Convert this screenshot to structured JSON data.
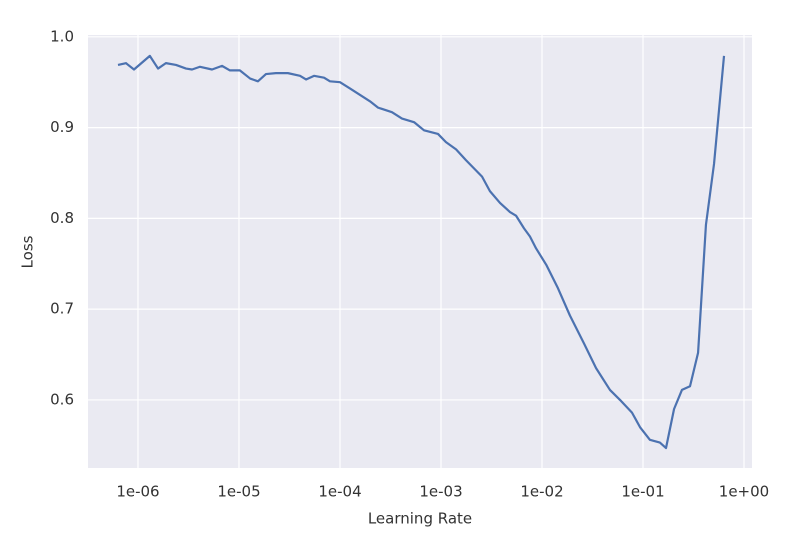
{
  "chart_data": {
    "type": "line",
    "x_label": "Learning Rate",
    "y_label": "Loss",
    "x_scale": "log",
    "grid": true,
    "xlim": [
      3.2e-07,
      1.2
    ],
    "ylim": [
      0.525,
      1.002
    ],
    "xticks": [
      {
        "value": 1e-06,
        "label": "1e-06"
      },
      {
        "value": 1e-05,
        "label": "1e-05"
      },
      {
        "value": 0.0001,
        "label": "1e-04"
      },
      {
        "value": 0.001,
        "label": "1e-03"
      },
      {
        "value": 0.01,
        "label": "1e-02"
      },
      {
        "value": 0.1,
        "label": "1e-01"
      },
      {
        "value": 1,
        "label": "1e+00"
      }
    ],
    "yticks": [
      0.6,
      0.7,
      0.8,
      0.9,
      {
        "value": 1.0,
        "label": "1.0"
      }
    ],
    "x": [
      6.34e-07,
      7.6e-07,
      9.13e-07,
      1.31e-06,
      1.58e-06,
      1.89e-06,
      2.38e-06,
      2.99e-06,
      3.43e-06,
      4.11e-06,
      5.41e-06,
      6.79e-06,
      8.14e-06,
      1.02e-05,
      1.29e-05,
      1.54e-05,
      1.85e-05,
      2.32e-05,
      3.05e-05,
      4.02e-05,
      4.61e-05,
      5.53e-05,
      6.95e-05,
      7.96e-05,
      0.0001,
      0.000126,
      0.000158,
      0.000198,
      0.000238,
      0.000327,
      0.000411,
      0.000541,
      0.000679,
      0.000934,
      0.00112,
      0.00141,
      0.00177,
      0.00255,
      0.00305,
      0.00384,
      0.00482,
      0.00553,
      0.00664,
      0.0076,
      0.00873,
      0.011,
      0.0144,
      0.0189,
      0.0261,
      0.0343,
      0.0471,
      0.0592,
      0.0778,
      0.0934,
      0.117,
      0.147,
      0.169,
      0.203,
      0.243,
      0.292,
      0.351,
      0.42,
      0.505,
      0.634
    ],
    "series": [
      {
        "name": "Loss",
        "color": "#4c72b0",
        "values": [
          0.969,
          0.971,
          0.964,
          0.979,
          0.965,
          0.971,
          0.969,
          0.965,
          0.964,
          0.967,
          0.964,
          0.968,
          0.963,
          0.963,
          0.954,
          0.951,
          0.959,
          0.96,
          0.96,
          0.957,
          0.953,
          0.957,
          0.955,
          0.951,
          0.95,
          0.943,
          0.936,
          0.929,
          0.922,
          0.917,
          0.91,
          0.906,
          0.897,
          0.893,
          0.884,
          0.876,
          0.864,
          0.846,
          0.83,
          0.817,
          0.807,
          0.803,
          0.789,
          0.78,
          0.767,
          0.749,
          0.723,
          0.693,
          0.662,
          0.635,
          0.611,
          0.6,
          0.586,
          0.57,
          0.556,
          0.553,
          0.547,
          0.59,
          0.611,
          0.615,
          0.652,
          0.793,
          0.86,
          0.979
        ]
      }
    ]
  }
}
